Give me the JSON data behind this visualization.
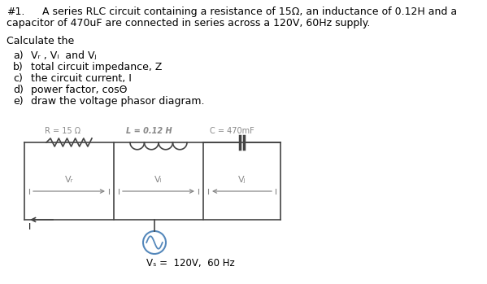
{
  "bg_color": "#ffffff",
  "text_color": "#000000",
  "circuit_color": "#444444",
  "source_color": "#5588bb",
  "label_color": "#888888",
  "divider_color": "#aaaaaa",
  "R_label": "R = 15 Ω",
  "L_label": "L = 0.12 H",
  "C_label": "C = 470mF",
  "Vs_label": "Vₛ =  120V,  60 Hz"
}
